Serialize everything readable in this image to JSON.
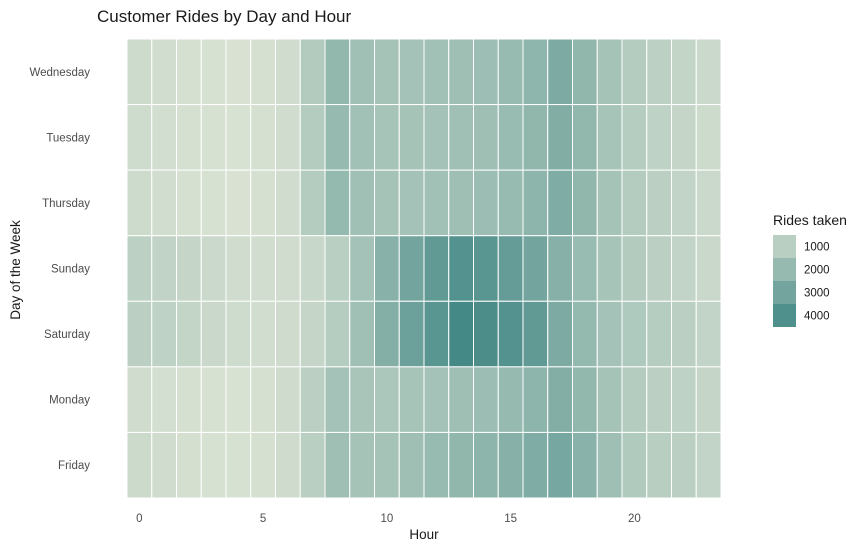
{
  "chart_data": {
    "type": "heatmap",
    "title": "Customer Rides by Day and Hour",
    "xlabel": "Hour",
    "ylabel": "Day of the Week",
    "x_ticks": [
      0,
      5,
      10,
      15,
      20
    ],
    "xlim": [
      -0.5,
      23.5
    ],
    "hours": [
      0,
      1,
      2,
      3,
      4,
      5,
      6,
      7,
      8,
      9,
      10,
      11,
      12,
      13,
      14,
      15,
      16,
      17,
      18,
      19,
      20,
      21,
      22,
      23
    ],
    "days": [
      "Wednesday",
      "Tuesday",
      "Thursday",
      "Sunday",
      "Saturday",
      "Monday",
      "Friday"
    ],
    "values": [
      [
        450,
        320,
        210,
        150,
        120,
        180,
        350,
        1200,
        2100,
        1700,
        1550,
        1600,
        1650,
        1750,
        1800,
        1950,
        2200,
        2700,
        2150,
        1550,
        1150,
        900,
        700,
        500
      ],
      [
        400,
        280,
        190,
        140,
        110,
        170,
        330,
        1150,
        2000,
        1650,
        1500,
        1550,
        1600,
        1700,
        1750,
        1900,
        2150,
        2600,
        2100,
        1500,
        1100,
        850,
        650,
        450
      ],
      [
        420,
        300,
        200,
        150,
        120,
        180,
        340,
        1150,
        2050,
        1700,
        1550,
        1600,
        1650,
        1750,
        1850,
        1950,
        2250,
        2650,
        2150,
        1550,
        1150,
        950,
        750,
        520
      ],
      [
        900,
        800,
        650,
        500,
        350,
        300,
        350,
        600,
        1000,
        1600,
        2400,
        3000,
        3500,
        3900,
        3700,
        3400,
        3000,
        2450,
        1900,
        1500,
        1200,
        950,
        750,
        550
      ],
      [
        950,
        850,
        700,
        550,
        400,
        320,
        380,
        650,
        1100,
        1700,
        2500,
        3200,
        3700,
        4300,
        4100,
        3900,
        3500,
        2700,
        2050,
        1600,
        1300,
        1100,
        950,
        750
      ],
      [
        350,
        250,
        180,
        130,
        110,
        190,
        380,
        950,
        1600,
        1450,
        1400,
        1500,
        1600,
        1750,
        1850,
        2000,
        2250,
        2550,
        2100,
        1550,
        1150,
        950,
        850,
        650
      ],
      [
        480,
        330,
        220,
        160,
        130,
        190,
        370,
        1000,
        1750,
        1550,
        1550,
        1750,
        1950,
        2150,
        2250,
        2450,
        2650,
        2900,
        2350,
        1750,
        1250,
        1050,
        950,
        750
      ]
    ],
    "legend": {
      "title": "Rides taken",
      "entries": [
        1000,
        2000,
        3000,
        4000
      ]
    },
    "color_scale": {
      "low": "#dce4d4",
      "high": "#3e8583"
    },
    "grid": false
  }
}
